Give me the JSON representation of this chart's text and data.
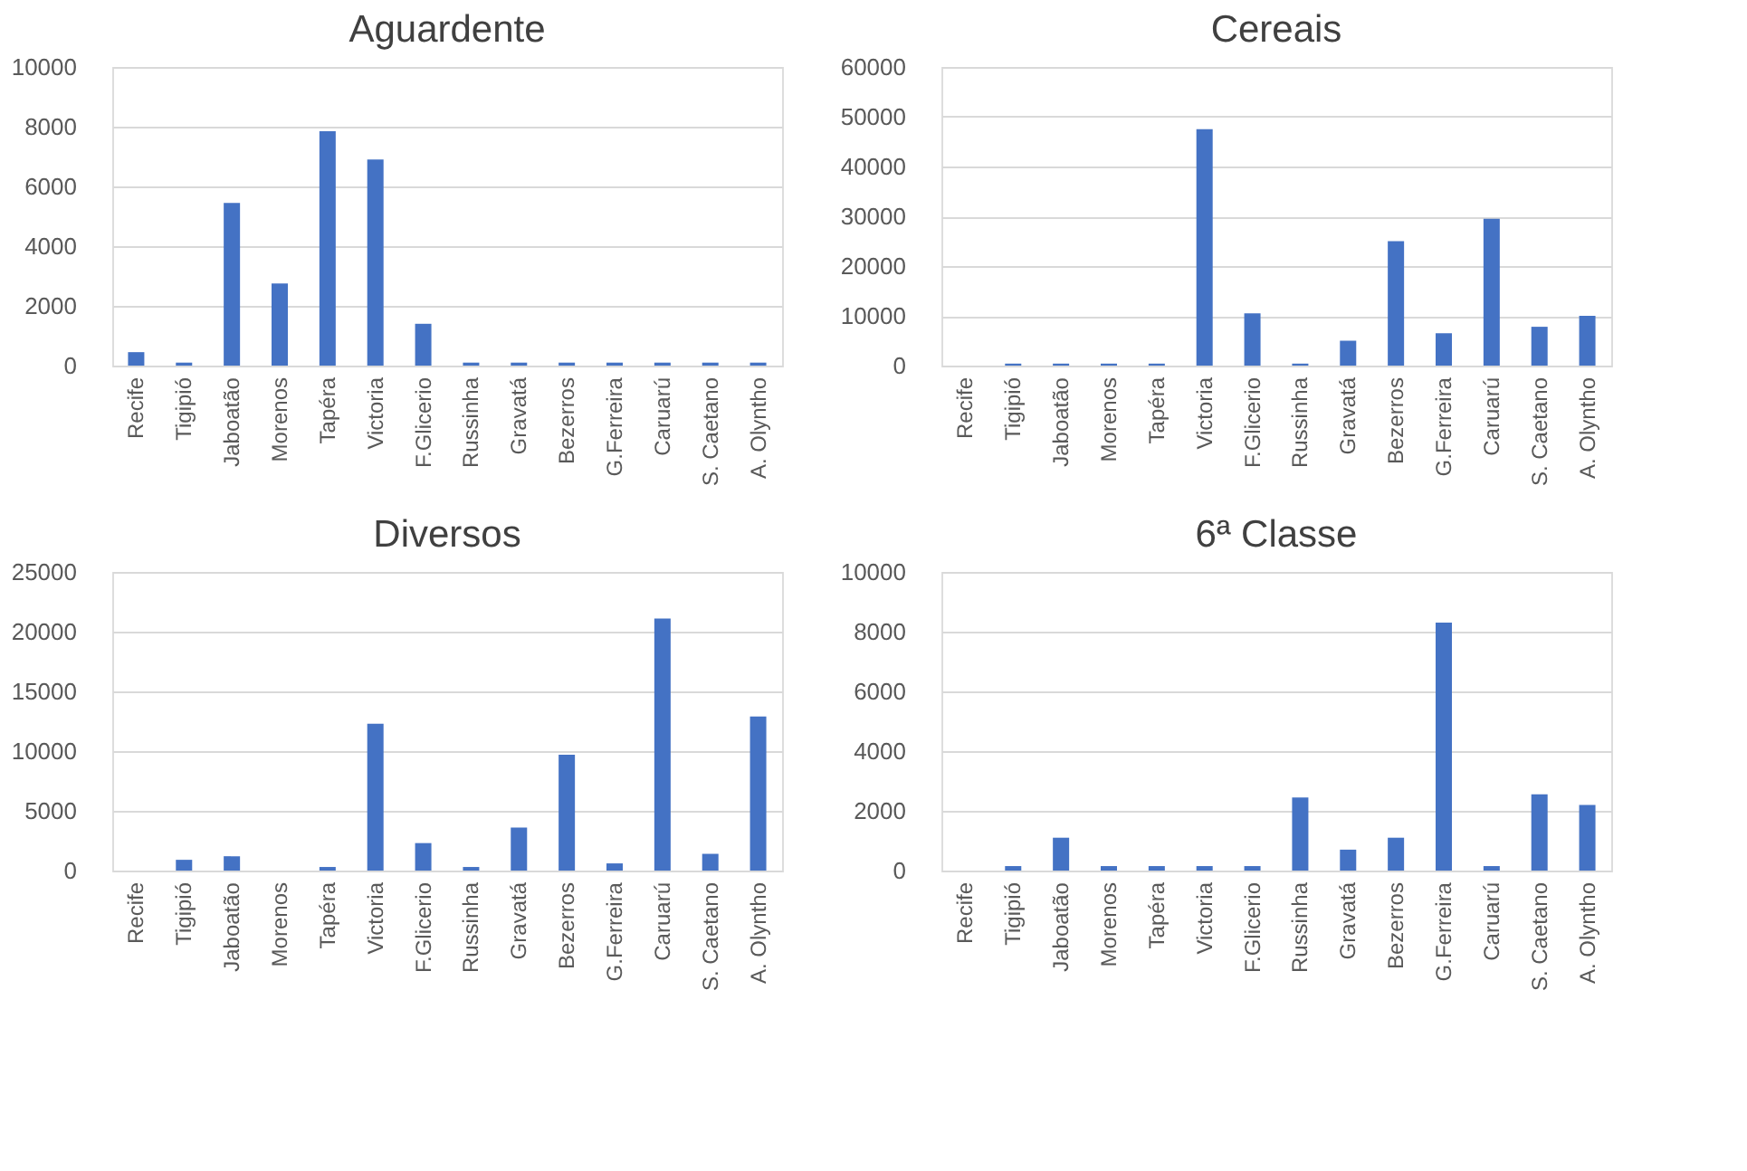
{
  "chart_data": [
    {
      "type": "bar",
      "title": "Aguardente",
      "categories": [
        "Recife",
        "Tigipió",
        "Jaboatão",
        "Morenos",
        "Tapéra",
        "Victoria",
        "F.Glicerio",
        "Russinha",
        "Gravatá",
        "Bezerros",
        "G.Ferreira",
        "Caruarú",
        "S. Caetano",
        "A. Olyntho"
      ],
      "values": [
        450,
        100,
        5450,
        2750,
        7850,
        6900,
        1400,
        100,
        100,
        100,
        100,
        100,
        100,
        100
      ],
      "color": "#4472c4",
      "ylim": [
        0,
        10000
      ],
      "yticks": [
        0,
        2000,
        4000,
        6000,
        8000,
        10000
      ],
      "grid": "y"
    },
    {
      "type": "bar",
      "title": "Cereais",
      "categories": [
        "Recife",
        "Tigipió",
        "Jaboatão",
        "Morenos",
        "Tapéra",
        "Victoria",
        "F.Glicerio",
        "Russinha",
        "Gravatá",
        "Bezerros",
        "G.Ferreira",
        "Caruarú",
        "S. Caetano",
        "A. Olyntho"
      ],
      "values": [
        0,
        400,
        400,
        400,
        400,
        47500,
        10500,
        400,
        5000,
        25000,
        6500,
        29500,
        7800,
        10000
      ],
      "color": "#4472c4",
      "ylim": [
        0,
        60000
      ],
      "yticks": [
        0,
        10000,
        20000,
        30000,
        40000,
        50000,
        60000
      ],
      "grid": "y"
    },
    {
      "type": "bar",
      "title": "Diversos",
      "categories": [
        "Recife",
        "Tigipió",
        "Jaboatão",
        "Morenos",
        "Tapéra",
        "Victoria",
        "F.Glicerio",
        "Russinha",
        "Gravatá",
        "Bezerros",
        "G.Ferreira",
        "Caruarú",
        "S. Caetano",
        "A. Olyntho"
      ],
      "values": [
        0,
        900,
        1200,
        0,
        300,
        12300,
        2300,
        300,
        3600,
        9700,
        600,
        21100,
        1400,
        12900
      ],
      "color": "#4472c4",
      "ylim": [
        0,
        25000
      ],
      "yticks": [
        0,
        5000,
        10000,
        15000,
        20000,
        25000
      ],
      "grid": "y"
    },
    {
      "type": "bar",
      "title": "6ª Classe",
      "categories": [
        "Recife",
        "Tigipió",
        "Jaboatão",
        "Morenos",
        "Tapéra",
        "Victoria",
        "F.Glicerio",
        "Russinha",
        "Gravatá",
        "Bezerros",
        "G.Ferreira",
        "Caruarú",
        "S. Caetano",
        "A. Olyntho"
      ],
      "values": [
        0,
        150,
        1100,
        150,
        150,
        150,
        150,
        2450,
        700,
        1100,
        8300,
        150,
        2550,
        2200
      ],
      "color": "#4472c4",
      "ylim": [
        0,
        10000
      ],
      "yticks": [
        0,
        2000,
        4000,
        6000,
        8000,
        10000
      ],
      "grid": "y"
    }
  ]
}
